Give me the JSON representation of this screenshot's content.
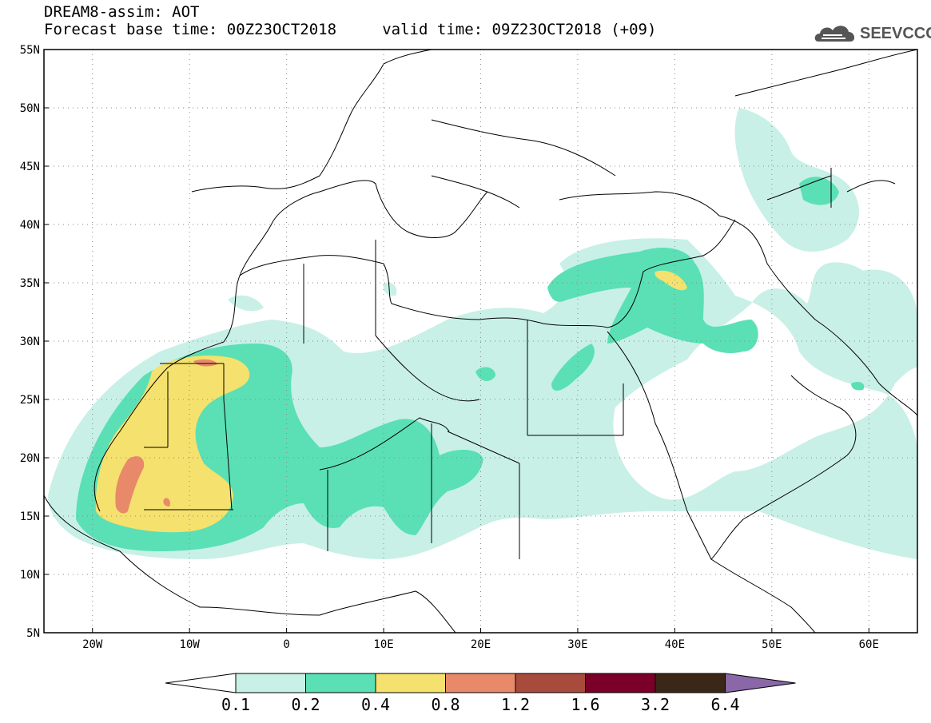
{
  "header": {
    "model_title": "DREAM8-assim: AOT",
    "forecast_line": "Forecast base time: 00Z23OCT2018     valid time: 09Z23OCT2018 (+09)"
  },
  "logo": {
    "text": "SEEVCCC",
    "icon": "cloud-logo-icon"
  },
  "map": {
    "projection": "lat-lon",
    "lon_range": [
      -25,
      65
    ],
    "lat_range": [
      5,
      55
    ],
    "lon_ticks": [
      {
        "lon": -20,
        "label": "20W"
      },
      {
        "lon": -10,
        "label": "10W"
      },
      {
        "lon": 0,
        "label": "0"
      },
      {
        "lon": 10,
        "label": "10E"
      },
      {
        "lon": 20,
        "label": "20E"
      },
      {
        "lon": 30,
        "label": "30E"
      },
      {
        "lon": 40,
        "label": "40E"
      },
      {
        "lon": 50,
        "label": "50E"
      },
      {
        "lon": 60,
        "label": "60E"
      }
    ],
    "lat_ticks": [
      {
        "lat": 55,
        "label": "55N"
      },
      {
        "lat": 50,
        "label": "50N"
      },
      {
        "lat": 45,
        "label": "45N"
      },
      {
        "lat": 40,
        "label": "40N"
      },
      {
        "lat": 35,
        "label": "35N"
      },
      {
        "lat": 30,
        "label": "30N"
      },
      {
        "lat": 25,
        "label": "25N"
      },
      {
        "lat": 20,
        "label": "20N"
      },
      {
        "lat": 15,
        "label": "15N"
      },
      {
        "lat": 10,
        "label": "10N"
      },
      {
        "lat": 5,
        "label": "5N"
      }
    ],
    "grid": true
  },
  "colorbar": {
    "levels": [
      "0.1",
      "0.2",
      "0.4",
      "0.8",
      "1.2",
      "1.6",
      "3.2",
      "6.4"
    ],
    "colors": [
      "#c8f0e6",
      "#5ae0b4",
      "#f5e16e",
      "#e8896a",
      "#a84b3c",
      "#7a0029",
      "#3a2718"
    ],
    "below_color": "#ffffff",
    "above_color": "#8a68a8"
  }
}
